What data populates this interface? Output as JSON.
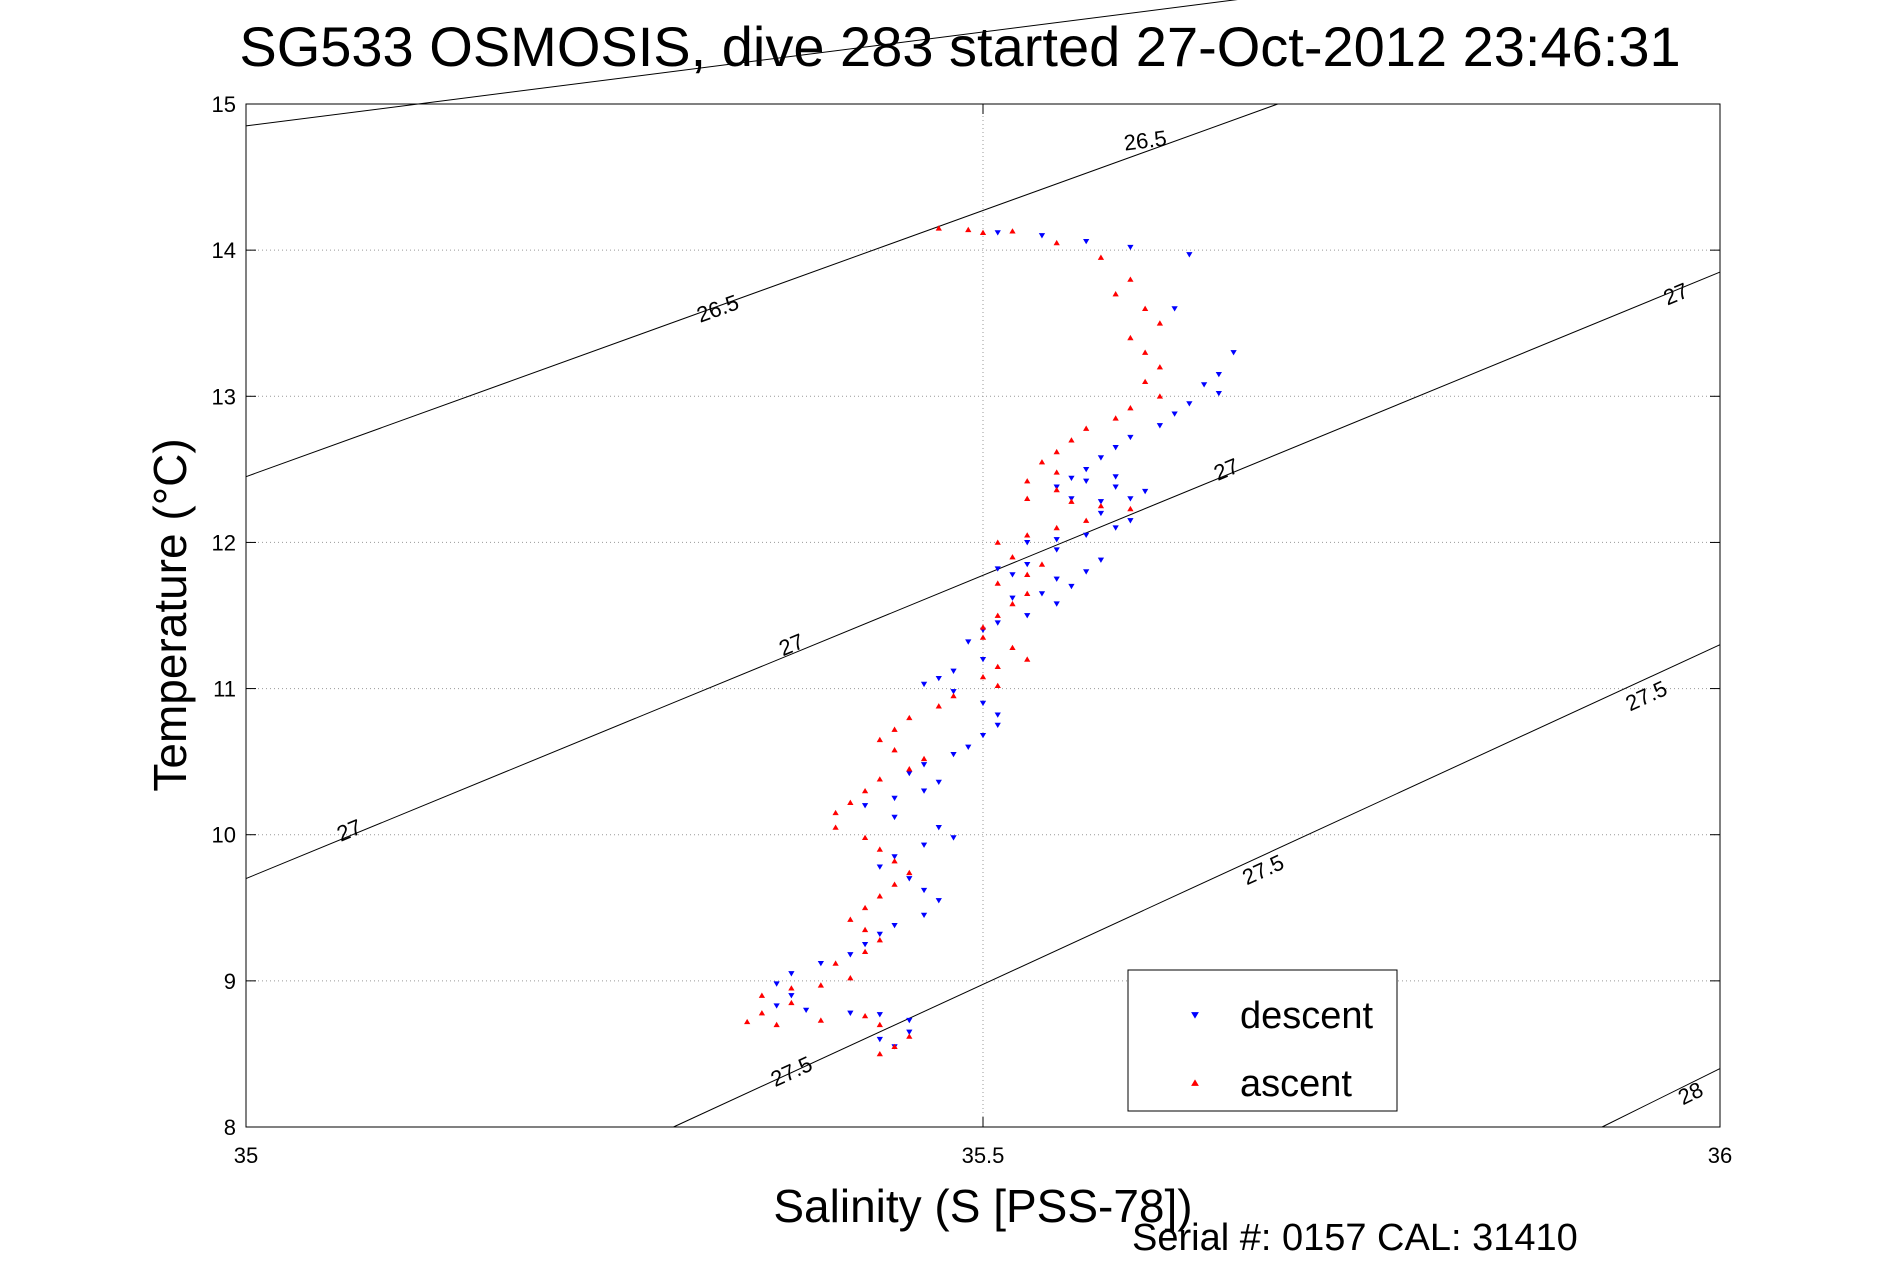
{
  "chart_data": {
    "type": "scatter",
    "title": "SG533 OSMOSIS, dive 283 started 27-Oct-2012 23:46:31",
    "xlabel": "Salinity (S [PSS-78])",
    "ylabel": "Temperature (°C)",
    "xlim": [
      35,
      36
    ],
    "ylim": [
      8,
      15
    ],
    "grid": true,
    "x_ticks": [
      {
        "value": 35,
        "label": "35"
      },
      {
        "value": 35.5,
        "label": "35.5"
      },
      {
        "value": 36,
        "label": "36"
      }
    ],
    "y_ticks": [
      {
        "value": 8,
        "label": "8"
      },
      {
        "value": 9,
        "label": "9"
      },
      {
        "value": 10,
        "label": "10"
      },
      {
        "value": 11,
        "label": "11"
      },
      {
        "value": 12,
        "label": "12"
      },
      {
        "value": 13,
        "label": "13"
      },
      {
        "value": 14,
        "label": "14"
      },
      {
        "value": 15,
        "label": "15"
      }
    ],
    "legend_position": "bottom-right",
    "footer": "Serial #: 0157  CAL: 31410",
    "isopycnals": [
      {
        "label": "26.5",
        "points": [
          [
            35,
            14.85
          ],
          [
            35.7,
            15.75
          ]
        ],
        "labels_at": [
          [
            35.61,
            14.75,
            "26.5"
          ]
        ]
      },
      {
        "label": "26.5",
        "points": [
          [
            35,
            12.45
          ],
          [
            35.7,
            15.0
          ]
        ],
        "labels_at": [
          [
            35.32,
            13.6,
            "26.5"
          ]
        ]
      },
      {
        "label": "27",
        "points": [
          [
            35,
            9.7
          ],
          [
            36,
            13.85
          ]
        ],
        "labels_at": [
          [
            35.07,
            10.03,
            "27"
          ],
          [
            35.37,
            11.3,
            "27"
          ],
          [
            35.665,
            12.5,
            "27"
          ],
          [
            35.97,
            13.7,
            "27"
          ]
        ]
      },
      {
        "label": "27.5",
        "points": [
          [
            35.29,
            8.0
          ],
          [
            36,
            11.3
          ]
        ],
        "labels_at": [
          [
            35.37,
            8.38,
            "27.5"
          ],
          [
            35.69,
            9.76,
            "27.5"
          ],
          [
            35.95,
            10.95,
            "27.5"
          ]
        ]
      },
      {
        "label": "28",
        "points": [
          [
            35.92,
            8.0
          ],
          [
            36,
            8.4
          ]
        ],
        "labels_at": [
          [
            35.98,
            8.23,
            "28"
          ]
        ]
      }
    ],
    "series": [
      {
        "name": "descent",
        "color": "#0000ff",
        "marker": "triangle-down",
        "points": [
          [
            35.64,
            13.97
          ],
          [
            35.63,
            13.6
          ],
          [
            35.6,
            14.02
          ],
          [
            35.57,
            14.06
          ],
          [
            35.54,
            14.1
          ],
          [
            35.51,
            14.12
          ],
          [
            35.67,
            13.3
          ],
          [
            35.66,
            13.15
          ],
          [
            35.65,
            13.08
          ],
          [
            35.66,
            13.02
          ],
          [
            35.64,
            12.95
          ],
          [
            35.63,
            12.88
          ],
          [
            35.62,
            12.8
          ],
          [
            35.6,
            12.72
          ],
          [
            35.59,
            12.65
          ],
          [
            35.58,
            12.58
          ],
          [
            35.57,
            12.5
          ],
          [
            35.56,
            12.44
          ],
          [
            35.59,
            12.38
          ],
          [
            35.61,
            12.35
          ],
          [
            35.6,
            12.3
          ],
          [
            35.58,
            12.28
          ],
          [
            35.56,
            12.3
          ],
          [
            35.55,
            12.38
          ],
          [
            35.57,
            12.42
          ],
          [
            35.59,
            12.45
          ],
          [
            35.58,
            12.2
          ],
          [
            35.6,
            12.15
          ],
          [
            35.59,
            12.1
          ],
          [
            35.57,
            12.05
          ],
          [
            35.55,
            12.02
          ],
          [
            35.53,
            12.0
          ],
          [
            35.55,
            11.95
          ],
          [
            35.58,
            11.88
          ],
          [
            35.57,
            11.8
          ],
          [
            35.55,
            11.75
          ],
          [
            35.52,
            11.78
          ],
          [
            35.51,
            11.82
          ],
          [
            35.53,
            11.85
          ],
          [
            35.56,
            11.7
          ],
          [
            35.54,
            11.65
          ],
          [
            35.52,
            11.62
          ],
          [
            35.55,
            11.58
          ],
          [
            35.53,
            11.5
          ],
          [
            35.51,
            11.45
          ],
          [
            35.5,
            11.4
          ],
          [
            35.49,
            11.32
          ],
          [
            35.5,
            11.2
          ],
          [
            35.48,
            11.12
          ],
          [
            35.47,
            11.07
          ],
          [
            35.46,
            11.03
          ],
          [
            35.48,
            10.98
          ],
          [
            35.5,
            10.9
          ],
          [
            35.51,
            10.82
          ],
          [
            35.51,
            10.75
          ],
          [
            35.5,
            10.68
          ],
          [
            35.49,
            10.6
          ],
          [
            35.48,
            10.55
          ],
          [
            35.46,
            10.48
          ],
          [
            35.45,
            10.42
          ],
          [
            35.47,
            10.36
          ],
          [
            35.46,
            10.3
          ],
          [
            35.44,
            10.25
          ],
          [
            35.42,
            10.2
          ],
          [
            35.44,
            10.12
          ],
          [
            35.47,
            10.05
          ],
          [
            35.48,
            9.98
          ],
          [
            35.46,
            9.93
          ],
          [
            35.44,
            9.85
          ],
          [
            35.43,
            9.78
          ],
          [
            35.45,
            9.7
          ],
          [
            35.46,
            9.62
          ],
          [
            35.47,
            9.55
          ],
          [
            35.46,
            9.45
          ],
          [
            35.44,
            9.38
          ],
          [
            35.43,
            9.32
          ],
          [
            35.42,
            9.25
          ],
          [
            35.41,
            9.18
          ],
          [
            35.39,
            9.12
          ],
          [
            35.37,
            9.05
          ],
          [
            35.36,
            8.98
          ],
          [
            35.37,
            8.9
          ],
          [
            35.36,
            8.83
          ],
          [
            35.38,
            8.8
          ],
          [
            35.41,
            8.78
          ],
          [
            35.43,
            8.77
          ],
          [
            35.45,
            8.73
          ],
          [
            35.45,
            8.65
          ],
          [
            35.43,
            8.6
          ],
          [
            35.44,
            8.55
          ]
        ]
      },
      {
        "name": "ascent",
        "color": "#ff0000",
        "marker": "triangle-up",
        "points": [
          [
            35.47,
            14.15
          ],
          [
            35.49,
            14.14
          ],
          [
            35.5,
            14.12
          ],
          [
            35.52,
            14.13
          ],
          [
            35.55,
            14.05
          ],
          [
            35.58,
            13.95
          ],
          [
            35.6,
            13.8
          ],
          [
            35.59,
            13.7
          ],
          [
            35.61,
            13.6
          ],
          [
            35.62,
            13.5
          ],
          [
            35.6,
            13.4
          ],
          [
            35.61,
            13.3
          ],
          [
            35.62,
            13.2
          ],
          [
            35.61,
            13.1
          ],
          [
            35.62,
            13.0
          ],
          [
            35.6,
            12.92
          ],
          [
            35.59,
            12.85
          ],
          [
            35.57,
            12.78
          ],
          [
            35.56,
            12.7
          ],
          [
            35.55,
            12.62
          ],
          [
            35.54,
            12.55
          ],
          [
            35.55,
            12.48
          ],
          [
            35.53,
            12.42
          ],
          [
            35.55,
            12.36
          ],
          [
            35.53,
            12.3
          ],
          [
            35.56,
            12.28
          ],
          [
            35.58,
            12.25
          ],
          [
            35.6,
            12.23
          ],
          [
            35.57,
            12.15
          ],
          [
            35.55,
            12.1
          ],
          [
            35.53,
            12.05
          ],
          [
            35.51,
            12.0
          ],
          [
            35.52,
            11.9
          ],
          [
            35.54,
            11.85
          ],
          [
            35.53,
            11.78
          ],
          [
            35.51,
            11.72
          ],
          [
            35.53,
            11.65
          ],
          [
            35.52,
            11.58
          ],
          [
            35.51,
            11.5
          ],
          [
            35.5,
            11.42
          ],
          [
            35.5,
            11.35
          ],
          [
            35.52,
            11.28
          ],
          [
            35.53,
            11.2
          ],
          [
            35.51,
            11.15
          ],
          [
            35.5,
            11.08
          ],
          [
            35.51,
            11.02
          ],
          [
            35.48,
            10.95
          ],
          [
            35.47,
            10.88
          ],
          [
            35.45,
            10.8
          ],
          [
            35.44,
            10.72
          ],
          [
            35.43,
            10.65
          ],
          [
            35.44,
            10.58
          ],
          [
            35.46,
            10.52
          ],
          [
            35.45,
            10.45
          ],
          [
            35.43,
            10.38
          ],
          [
            35.42,
            10.3
          ],
          [
            35.41,
            10.22
          ],
          [
            35.4,
            10.15
          ],
          [
            35.4,
            10.05
          ],
          [
            35.42,
            9.98
          ],
          [
            35.43,
            9.9
          ],
          [
            35.44,
            9.82
          ],
          [
            35.45,
            9.74
          ],
          [
            35.44,
            9.66
          ],
          [
            35.43,
            9.58
          ],
          [
            35.42,
            9.5
          ],
          [
            35.41,
            9.42
          ],
          [
            35.42,
            9.35
          ],
          [
            35.43,
            9.28
          ],
          [
            35.42,
            9.2
          ],
          [
            35.4,
            9.12
          ],
          [
            35.41,
            9.02
          ],
          [
            35.39,
            8.97
          ],
          [
            35.37,
            8.95
          ],
          [
            35.35,
            8.9
          ],
          [
            35.37,
            8.85
          ],
          [
            35.35,
            8.78
          ],
          [
            35.34,
            8.72
          ],
          [
            35.36,
            8.7
          ],
          [
            35.39,
            8.73
          ],
          [
            35.42,
            8.76
          ],
          [
            35.43,
            8.7
          ],
          [
            35.45,
            8.62
          ],
          [
            35.44,
            8.55
          ],
          [
            35.43,
            8.5
          ]
        ]
      }
    ]
  }
}
